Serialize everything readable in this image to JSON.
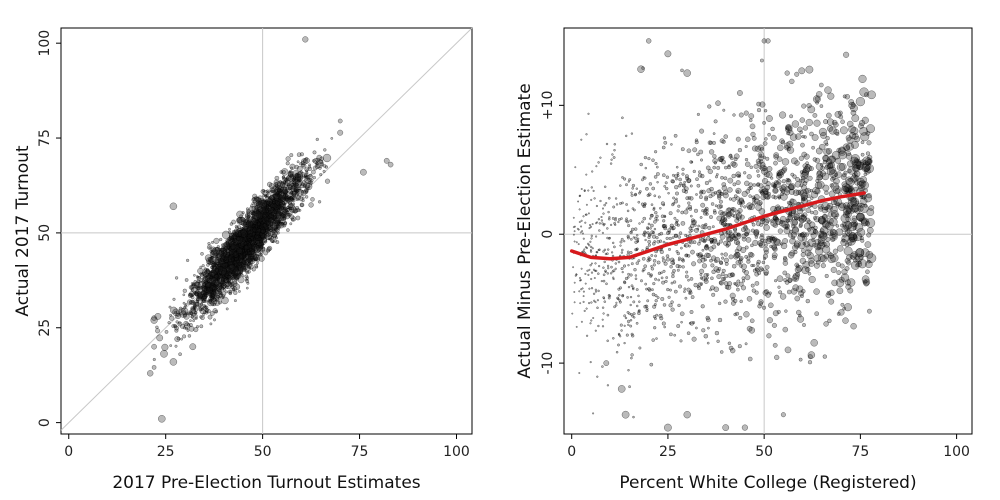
{
  "chart_data": [
    {
      "type": "scatter",
      "xlabel": "2017 Pre-Election Turnout Estimates",
      "ylabel": "Actual 2017 Turnout",
      "xlim": [
        -2,
        104
      ],
      "ylim": [
        -3,
        104
      ],
      "x_ticks": [
        "0",
        "25",
        "50",
        "75",
        "100"
      ],
      "x_tick_values": [
        0,
        25,
        50,
        75,
        100
      ],
      "y_ticks": [
        "0",
        "25",
        "50",
        "75",
        "100"
      ],
      "y_tick_values": [
        0,
        25,
        50,
        75,
        100
      ],
      "reference_lines": {
        "vertical": 50,
        "horizontal": 50,
        "diagonal": "y = x"
      },
      "point_cloud": {
        "n": 2600,
        "center": [
          45.5,
          47
        ],
        "slope": 1.15,
        "spread_x": 7.5,
        "residual_sd": 3.6,
        "x_range": [
          22,
          70
        ]
      },
      "outliers": [
        [
          61,
          101
        ],
        [
          27,
          57
        ],
        [
          76,
          66
        ],
        [
          83,
          68
        ],
        [
          82,
          69
        ],
        [
          24,
          1
        ],
        [
          21,
          13
        ],
        [
          22,
          20
        ],
        [
          23,
          28
        ],
        [
          22,
          27
        ],
        [
          28,
          22
        ],
        [
          32,
          20
        ],
        [
          27,
          16
        ]
      ]
    },
    {
      "type": "scatter",
      "xlabel": "Percent White College (Registered)",
      "ylabel": "Actual Minus Pre-Election Estimate",
      "xlim": [
        -2,
        104
      ],
      "ylim": [
        -15.5,
        16
      ],
      "x_ticks": [
        "0",
        "25",
        "50",
        "75",
        "100"
      ],
      "x_tick_values": [
        0,
        25,
        50,
        75,
        100
      ],
      "y_ticks": [
        "-10",
        "0",
        "+10"
      ],
      "y_tick_values": [
        -10,
        0,
        10
      ],
      "reference_lines": {
        "vertical": 50,
        "horizontal": 0
      },
      "point_cloud": {
        "n": 1900,
        "x_range": [
          0,
          78
        ],
        "residual_sd": 4.0
      },
      "outliers": [
        [
          50,
          15
        ],
        [
          51,
          15
        ],
        [
          20,
          15
        ],
        [
          25,
          14
        ],
        [
          18,
          12.8
        ],
        [
          30,
          12.5
        ],
        [
          56,
          12.5
        ],
        [
          25,
          -15
        ],
        [
          40,
          -15
        ],
        [
          45,
          -15
        ],
        [
          30,
          -14
        ],
        [
          55,
          -14
        ],
        [
          62,
          -9.5
        ],
        [
          9,
          -10
        ],
        [
          13,
          -12
        ],
        [
          14,
          -14
        ]
      ],
      "smooth_line": {
        "color": "#d7191c",
        "x": [
          0,
          5,
          10,
          15,
          20,
          25,
          30,
          35,
          40,
          45,
          50,
          55,
          60,
          65,
          70,
          76
        ],
        "y": [
          -1.3,
          -1.8,
          -1.9,
          -1.8,
          -1.3,
          -0.8,
          -0.4,
          0.0,
          0.4,
          0.9,
          1.4,
          1.8,
          2.2,
          2.6,
          2.9,
          3.2
        ]
      }
    }
  ]
}
